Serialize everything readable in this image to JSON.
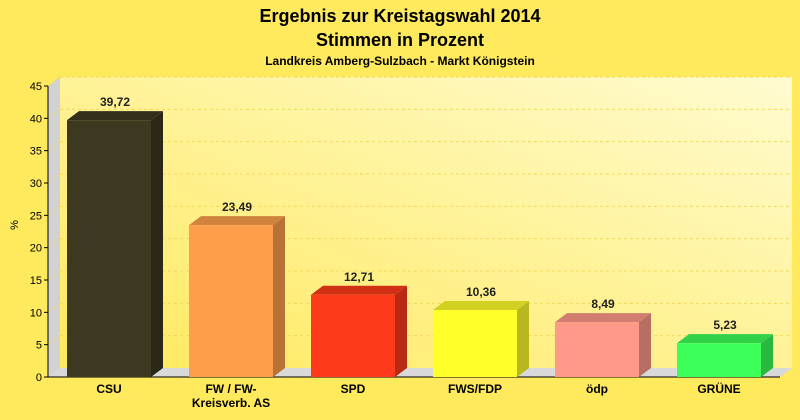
{
  "chart_data": {
    "type": "bar",
    "title": "Ergebnis zur Kreistagswahl 2014",
    "title2": "Stimmen in Prozent",
    "subtitle": "Landkreis Amberg-Sulzbach - Markt Königstein",
    "ylabel": "%",
    "xlabel": "",
    "ylim": [
      0,
      45
    ],
    "yticks": [
      0,
      5,
      10,
      15,
      20,
      25,
      30,
      35,
      40,
      45
    ],
    "grid": true,
    "categories": [
      [
        "CSU"
      ],
      [
        "FW / FW-",
        "Kreisverb. AS"
      ],
      [
        "SPD"
      ],
      [
        "FWS/FDP"
      ],
      [
        "ödp"
      ],
      [
        "GRÜNE"
      ]
    ],
    "values": [
      39.72,
      23.49,
      12.71,
      10.36,
      8.49,
      5.23
    ],
    "value_labels": [
      "39,72",
      "23,49",
      "12,71",
      "10,36",
      "8,49",
      "5,23"
    ],
    "colors": [
      "#3d3820",
      "#ff9e4a",
      "#ff3a1a",
      "#ffff2a",
      "#ff9a8a",
      "#3cff5a"
    ]
  }
}
